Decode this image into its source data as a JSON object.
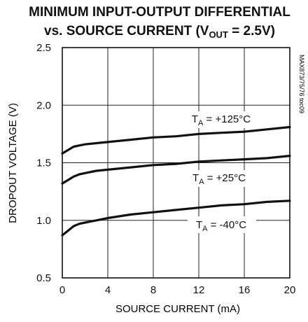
{
  "chart_data": {
    "type": "line",
    "title_line1": "MINIMUM INPUT-OUTPUT DIFFERENTIAL",
    "title_line2_prefix": "vs. SOURCE CURRENT (V",
    "title_line2_sub": "OUT",
    "title_line2_suffix": " = 2.5V)",
    "xlabel": "SOURCE CURRENT (mA)",
    "ylabel": "DROPOUT VOLTAGE (V)",
    "xlim": [
      0,
      20
    ],
    "ylim": [
      0.5,
      2.5
    ],
    "xticks": [
      0,
      4,
      8,
      12,
      16,
      20
    ],
    "xtick_labels": [
      "0",
      "4",
      "8",
      "12",
      "16",
      "20"
    ],
    "yticks": [
      0.5,
      1.0,
      1.5,
      2.0,
      2.5
    ],
    "ytick_labels": [
      "0.5",
      "1.0",
      "1.5",
      "2.0",
      "2.5"
    ],
    "grid": true,
    "side_note": "MAX873/75/76 toc09",
    "series": [
      {
        "name": "T_A = +125°C",
        "label_main": "T",
        "label_sub": "A",
        "label_rest": " = +125°C",
        "x": [
          0,
          0.5,
          1,
          1.5,
          2,
          3,
          4,
          6,
          8,
          10,
          12,
          14,
          16,
          18,
          20
        ],
        "y": [
          1.58,
          1.61,
          1.64,
          1.65,
          1.66,
          1.67,
          1.68,
          1.7,
          1.72,
          1.73,
          1.75,
          1.76,
          1.77,
          1.79,
          1.81
        ]
      },
      {
        "name": "T_A = +25°C",
        "label_main": "T",
        "label_sub": "A",
        "label_rest": " = +25°C",
        "x": [
          0,
          0.5,
          1,
          1.5,
          2,
          3,
          4,
          6,
          8,
          10,
          12,
          14,
          16,
          18,
          20
        ],
        "y": [
          1.32,
          1.35,
          1.38,
          1.4,
          1.41,
          1.43,
          1.44,
          1.46,
          1.48,
          1.49,
          1.51,
          1.52,
          1.53,
          1.54,
          1.56
        ]
      },
      {
        "name": "T_A = -40°C",
        "label_main": "T",
        "label_sub": "A",
        "label_rest": " = -40°C",
        "x": [
          0,
          0.5,
          1,
          1.5,
          2,
          3,
          4,
          6,
          8,
          10,
          12,
          14,
          16,
          18,
          20
        ],
        "y": [
          0.87,
          0.91,
          0.95,
          0.97,
          0.98,
          1.0,
          1.02,
          1.05,
          1.07,
          1.09,
          1.11,
          1.13,
          1.14,
          1.16,
          1.17
        ]
      }
    ]
  }
}
